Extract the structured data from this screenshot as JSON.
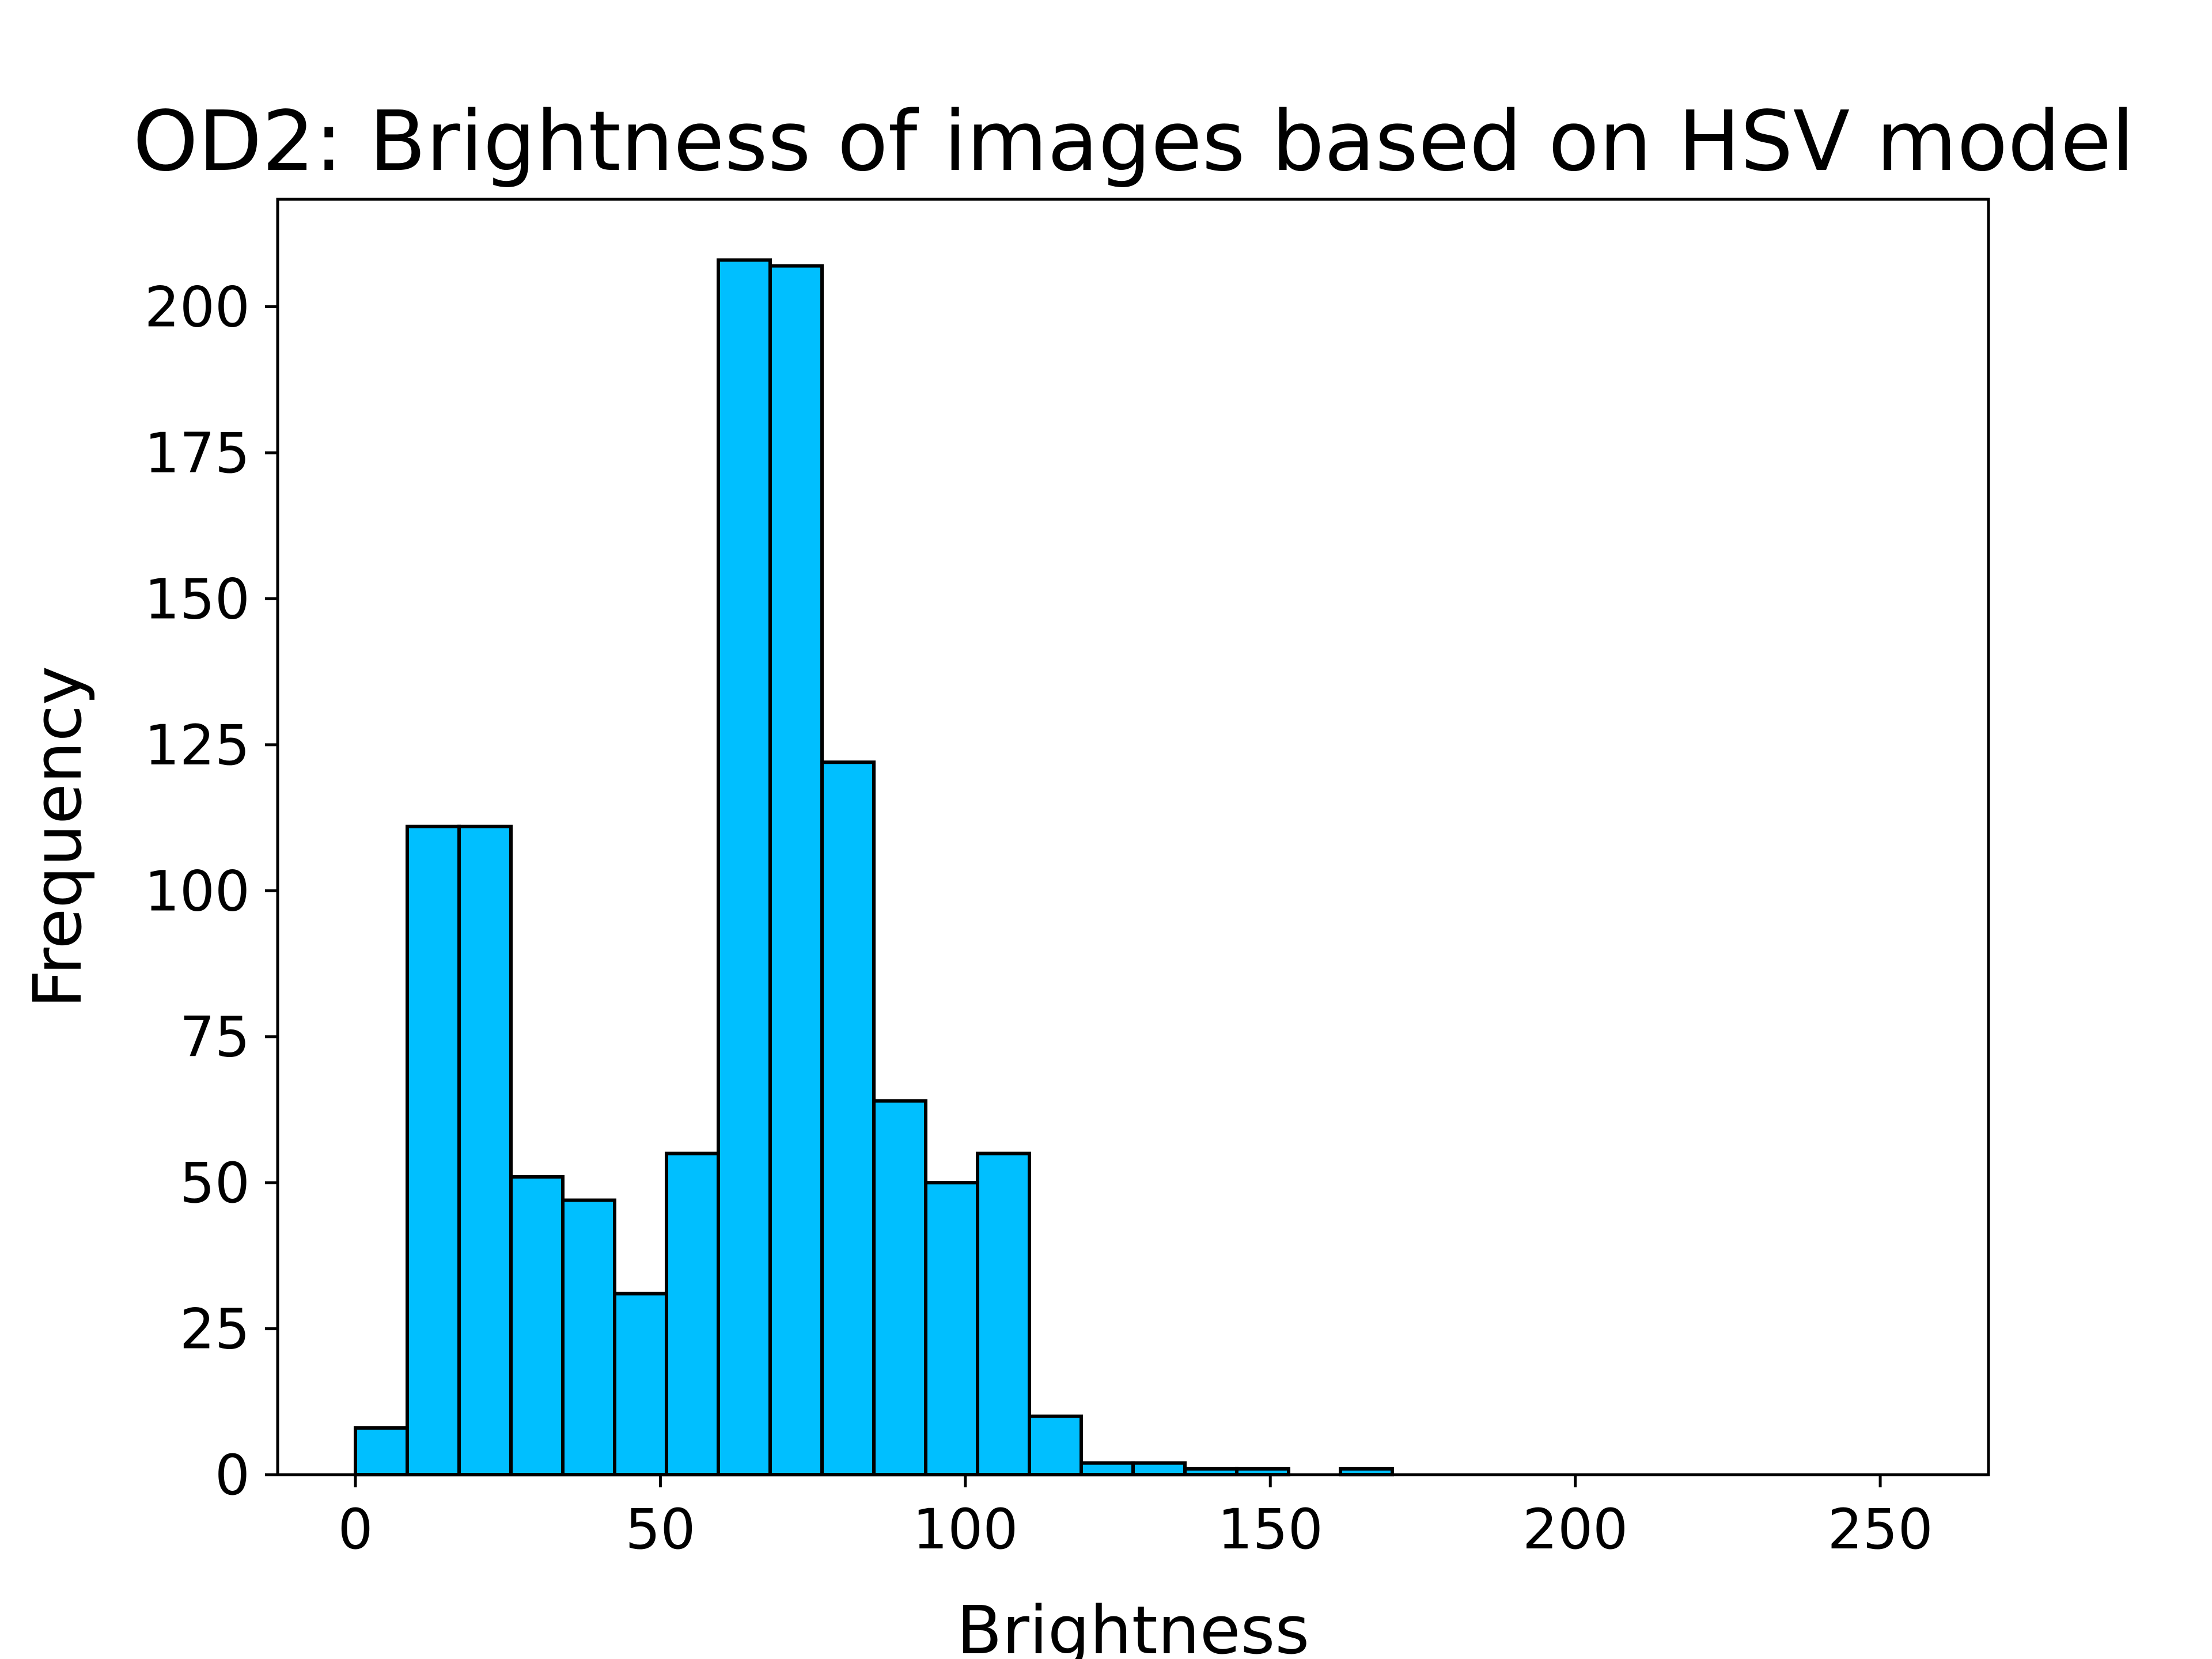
{
  "chart_data": {
    "type": "bar",
    "title": "OD2: Brightness of images based on HSV model",
    "xlabel": "Brightness",
    "ylabel": "Frequency",
    "xlim": [
      -12.75,
      267.75
    ],
    "ylim": [
      0,
      218.4
    ],
    "xticks": [
      0,
      50,
      100,
      150,
      200,
      250
    ],
    "yticks": [
      0,
      25,
      50,
      75,
      100,
      125,
      150,
      175,
      200
    ],
    "bin_edges": [
      0,
      8.5,
      17,
      25.5,
      34,
      42.5,
      51,
      59.5,
      68,
      76.5,
      85,
      93.5,
      102,
      110.5,
      119,
      127.5,
      136,
      144.5,
      153,
      161.5,
      170,
      178.5,
      187,
      195.5,
      204,
      212.5,
      221,
      229.5,
      238,
      246.5,
      255
    ],
    "values": [
      8,
      111,
      111,
      51,
      47,
      31,
      55,
      208,
      207,
      122,
      64,
      50,
      55,
      10,
      2,
      2,
      1,
      1,
      0,
      1,
      0,
      0,
      0,
      0,
      0,
      0,
      0,
      0,
      0,
      0
    ],
    "bar_color": "#00bfff",
    "edge_color": "#000000",
    "grid": false
  }
}
